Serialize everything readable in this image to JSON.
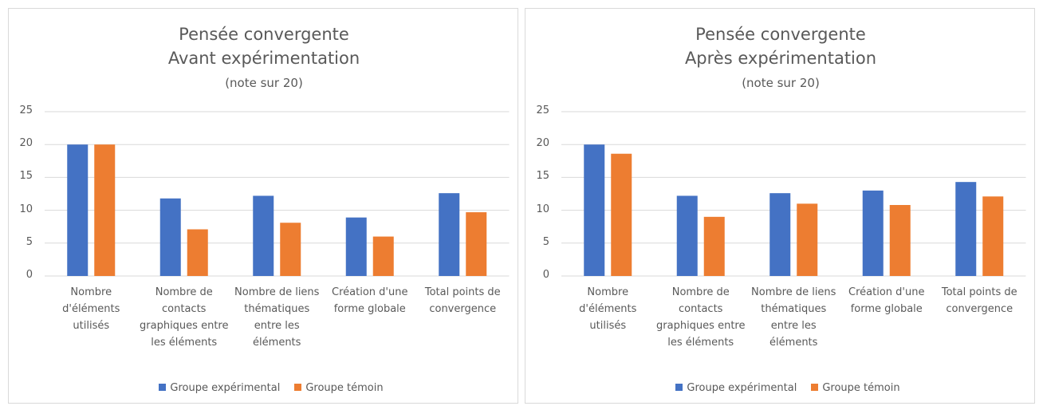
{
  "chart_data": [
    {
      "type": "bar",
      "title": "Pensée convergente",
      "subtitle": "Avant expérimentation",
      "note": "(note sur 20)",
      "categories": [
        "Nombre d'éléments utilisés",
        "Nombre de contacts graphiques entre les éléments",
        "Nombre de liens thématiques entre les éléments",
        "Création d'une forme globale",
        "Total points de convergence"
      ],
      "series": [
        {
          "name": "Groupe expérimental",
          "color": "#4472c4",
          "values": [
            20,
            11.8,
            12.2,
            8.9,
            12.6
          ]
        },
        {
          "name": "Groupe témoin",
          "color": "#ed7d31",
          "values": [
            20,
            7.1,
            8.1,
            6.0,
            9.7
          ]
        }
      ],
      "ylim": [
        0,
        25
      ],
      "yticks": [
        0,
        5,
        10,
        15,
        20,
        25
      ],
      "grid": true,
      "legend": "bottom"
    },
    {
      "type": "bar",
      "title": "Pensée convergente",
      "subtitle": "Après expérimentation",
      "note": "(note sur 20)",
      "categories": [
        "Nombre d'éléments utilisés",
        "Nombre de contacts graphiques entre les éléments",
        "Nombre de liens thématiques entre les éléments",
        "Création d'une forme globale",
        "Total points de convergence"
      ],
      "series": [
        {
          "name": "Groupe expérimental",
          "color": "#4472c4",
          "values": [
            20,
            12.2,
            12.6,
            13.0,
            14.3
          ]
        },
        {
          "name": "Groupe témoin",
          "color": "#ed7d31",
          "values": [
            18.6,
            9.0,
            11.0,
            10.8,
            12.1
          ]
        }
      ],
      "ylim": [
        0,
        25
      ],
      "yticks": [
        0,
        5,
        10,
        15,
        20,
        25
      ],
      "grid": true,
      "legend": "bottom"
    }
  ]
}
